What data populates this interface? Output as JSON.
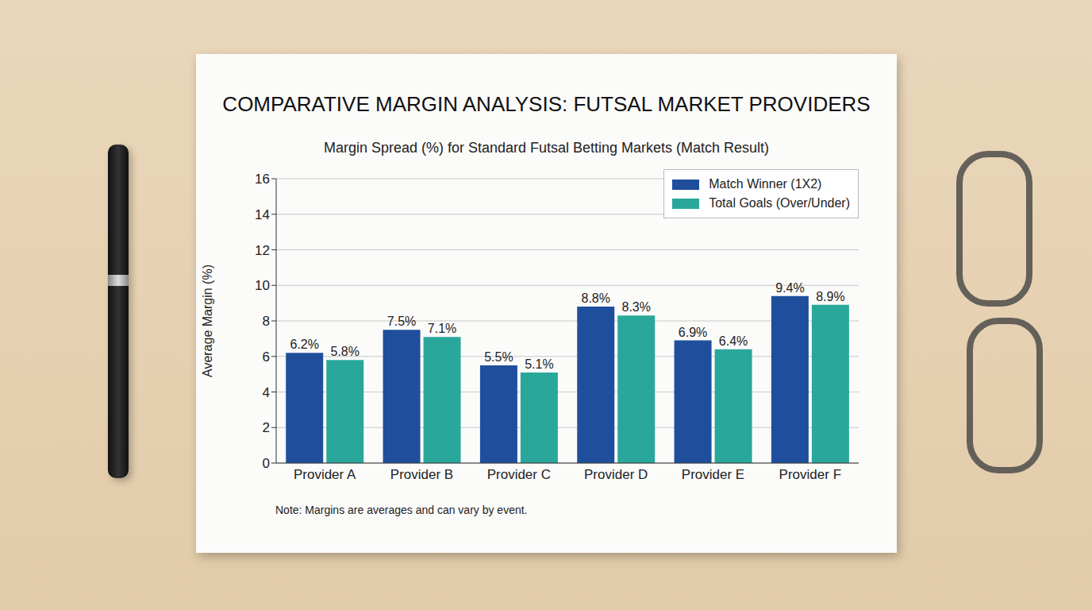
{
  "chart_data": {
    "type": "bar",
    "title": "COMPARATIVE MARGIN ANALYSIS: FUTSAL MARKET PROVIDERS",
    "subtitle": "Margin Spread (%) for Standard Futsal Betting Markets (Match Result)",
    "y_label": "Average Margin (%)",
    "annotations": [
      "Note: Margins are averages and can vary by event."
    ],
    "categories": [
      "Provider A",
      "Provider B",
      "Provider C",
      "Provider D",
      "Provider E",
      "Provider F"
    ],
    "series": [
      {
        "name": "Match Winner (1X2)",
        "color": "#1f4f9c",
        "values": [
          6.2,
          7.5,
          5.5,
          8.8,
          6.9,
          9.4
        ],
        "value_labels": [
          "6.2%",
          "7.5%",
          "5.5%",
          "8.8%",
          "6.9%",
          "9.4%"
        ]
      },
      {
        "name": "Total Goals (Over/Under)",
        "color": "#2aa79b",
        "values": [
          5.8,
          7.1,
          5.1,
          8.3,
          6.4,
          8.9
        ],
        "value_labels": [
          "5.8%",
          "7.1%",
          "5.1%",
          "8.3%",
          "6.4%",
          "8.9%"
        ]
      }
    ],
    "ylim": [
      0,
      16
    ],
    "yticks": [
      0,
      2,
      4,
      6,
      8,
      10,
      12,
      14,
      16
    ],
    "grid": true,
    "legend": "top-right",
    "data_labels": true
  }
}
